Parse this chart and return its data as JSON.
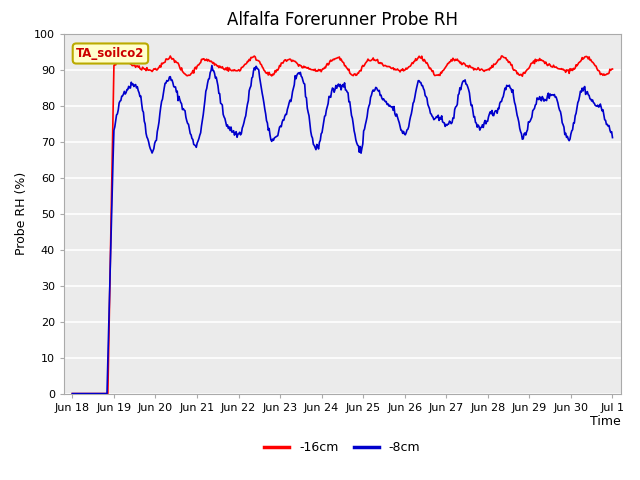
{
  "title": "Alfalfa Forerunner Probe RH",
  "xlabel": "Time",
  "ylabel": "Probe RH (%)",
  "ylim": [
    0,
    100
  ],
  "yticks": [
    0,
    10,
    20,
    30,
    40,
    50,
    60,
    70,
    80,
    90,
    100
  ],
  "fig_bg": "#ffffff",
  "axes_bg": "#ebebeb",
  "grid_color": "#ffffff",
  "annotation_text": "TA_soilco2",
  "annotation_bg": "#ffffcc",
  "annotation_border": "#bbaa00",
  "line_red_color": "#ff0000",
  "line_blue_color": "#0000cc",
  "legend_red": "-16cm",
  "legend_blue": "-8cm",
  "x_tick_labels": [
    "Jun 18",
    "Jun 19",
    "Jun 20",
    "Jun 21",
    "Jun 22",
    "Jun 23",
    "Jun 24",
    "Jun 25",
    "Jun 26",
    "Jun 27",
    "Jun 28",
    "Jun 29",
    "Jun 30",
    "Jul 1"
  ],
  "title_fontsize": 12,
  "axis_label_fontsize": 9,
  "tick_fontsize": 8,
  "legend_fontsize": 9,
  "linewidth": 1.2
}
